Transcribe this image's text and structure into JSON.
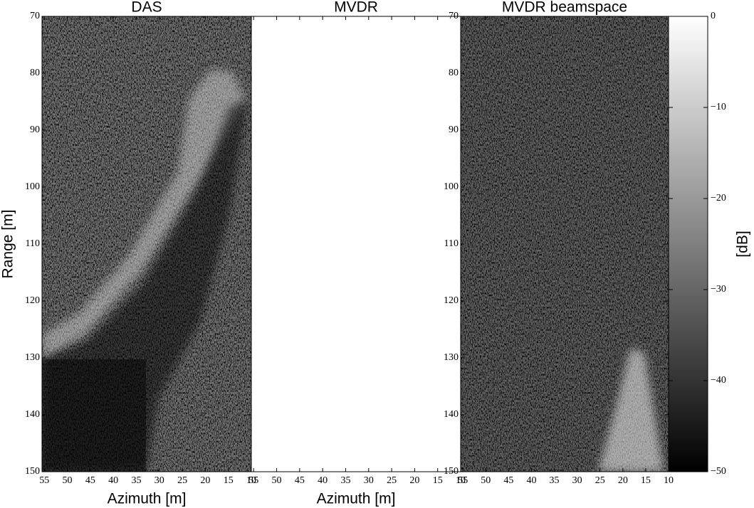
{
  "chart_data": [
    {
      "type": "heatmap",
      "title": "DAS",
      "xlabel": "Azimuth [m]",
      "ylabel": "Range [m]",
      "xlim": [
        55.5,
        10
      ],
      "ylim": [
        150,
        70
      ],
      "xticks": [
        55,
        50,
        45,
        40,
        35,
        30,
        25,
        20,
        15,
        10
      ],
      "yticks": [
        70,
        80,
        90,
        100,
        110,
        120,
        130,
        140,
        150
      ]
    },
    {
      "type": "heatmap",
      "title": "MVDR",
      "xlabel": "Azimuth [m]",
      "xlim": [
        55.5,
        10
      ],
      "ylim": [
        150,
        70
      ],
      "xticks": [
        55,
        50,
        45,
        40,
        35,
        30,
        25,
        20,
        15,
        10
      ]
    },
    {
      "type": "heatmap",
      "title": "MVDR beamspace",
      "xlim": [
        55.5,
        10
      ],
      "ylim": [
        150,
        70
      ],
      "xticks": [
        55,
        50,
        45,
        40,
        35,
        30,
        25,
        20,
        15,
        10
      ],
      "yticks": [
        70,
        80,
        90,
        100,
        110,
        120,
        130,
        140,
        150
      ]
    },
    {
      "type": "colorbar",
      "label": "[dB]",
      "ylim": [
        -50,
        0
      ],
      "yticks": [
        0,
        {
          "value": -10,
          "label": "−10"
        },
        {
          "value": -20,
          "label": "−20"
        },
        {
          "value": -30,
          "label": "−30"
        },
        {
          "value": -40,
          "label": "−40"
        },
        {
          "value": -50,
          "label": "−50"
        }
      ]
    }
  ]
}
